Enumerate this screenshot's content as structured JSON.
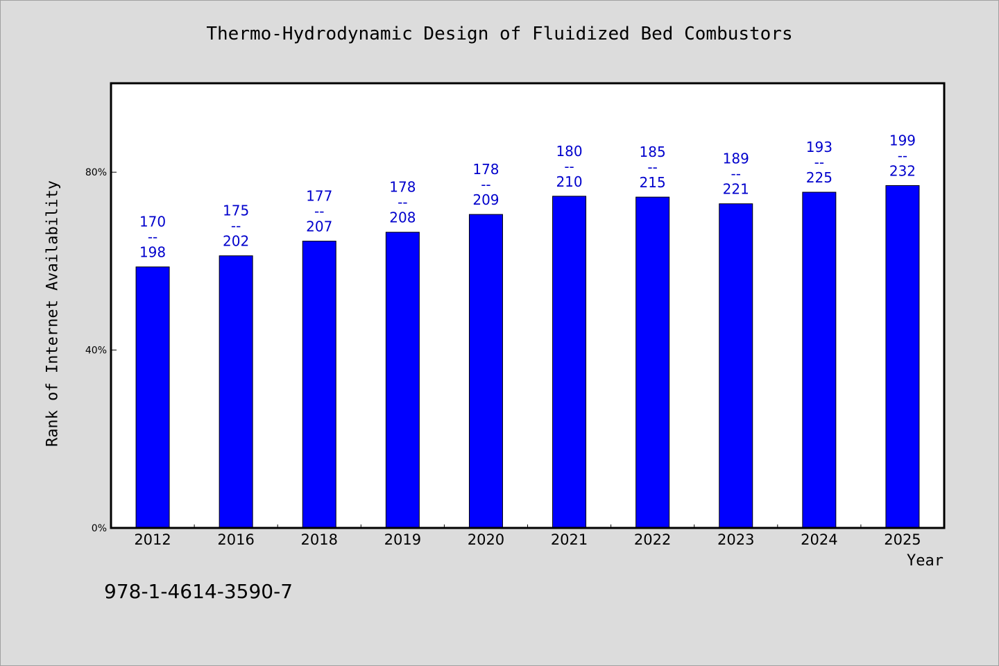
{
  "footer": {
    "isbn": "978-1-4614-3590-7"
  },
  "chart_data": {
    "type": "bar",
    "title": "Thermo-Hydrodynamic Design of Fluidized Bed Combustors",
    "xlabel": "Year",
    "ylabel": "Rank of Internet Availability",
    "ylim": [
      0,
      100
    ],
    "yticks": [
      0,
      40,
      80
    ],
    "ytick_labels": [
      "0%",
      "40%",
      "80%"
    ],
    "categories": [
      "2012",
      "2016",
      "2018",
      "2019",
      "2020",
      "2021",
      "2022",
      "2023",
      "2024",
      "2025"
    ],
    "values": [
      58.7,
      61.2,
      64.5,
      66.5,
      70.5,
      74.6,
      74.4,
      72.9,
      75.5,
      77.0
    ],
    "data_labels": [
      [
        "170",
        "--",
        "198"
      ],
      [
        "175",
        "--",
        "202"
      ],
      [
        "177",
        "--",
        "207"
      ],
      [
        "178",
        "--",
        "208"
      ],
      [
        "178",
        "--",
        "209"
      ],
      [
        "180",
        "--",
        "210"
      ],
      [
        "185",
        "--",
        "215"
      ],
      [
        "189",
        "--",
        "221"
      ],
      [
        "193",
        "--",
        "225"
      ],
      [
        "199",
        "--",
        "232"
      ]
    ],
    "bar_color": "#0000ff",
    "label_color": "#0000cc",
    "grid": false
  }
}
